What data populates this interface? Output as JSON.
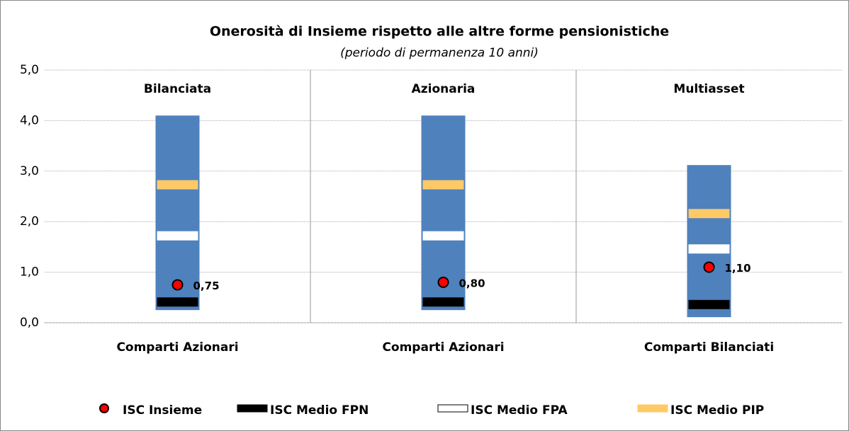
{
  "chart_data": {
    "type": "range-marker",
    "title": "Onerosità di Insieme rispetto alle altre forme pensionistiche",
    "subtitle": "(periodo di permanenza 10 anni)",
    "groups": [
      "Bilanciata",
      "Azionaria",
      "Multiasset"
    ],
    "categories": [
      "Comparti Azionari",
      "Comparti Azionari",
      "Comparti Bilanciati"
    ],
    "range": {
      "color": "#4f81bd",
      "low": [
        0.25,
        0.25,
        0.11
      ],
      "high": [
        4.1,
        4.1,
        3.12
      ]
    },
    "series": [
      {
        "name": "ISC Insieme",
        "color": "#ff0000",
        "marker": "dot",
        "values": [
          0.75,
          0.8,
          1.1
        ],
        "value_labels": [
          "0,75",
          "0,80",
          "1,10"
        ]
      },
      {
        "name": "ISC Medio FPN",
        "color": "#000000",
        "marker": "dash",
        "values": [
          0.41,
          0.41,
          0.36
        ]
      },
      {
        "name": "ISC Medio FPA",
        "color": "#ffffff",
        "marker": "dash",
        "values": [
          1.72,
          1.72,
          1.46
        ]
      },
      {
        "name": "ISC Medio PIP",
        "color": "#ffc966",
        "marker": "dash",
        "values": [
          2.73,
          2.73,
          2.16
        ]
      }
    ],
    "ylim": [
      0,
      5
    ],
    "yticks": [
      {
        "value": 0,
        "label": "0,0"
      },
      {
        "value": 1,
        "label": "1,0"
      },
      {
        "value": 2,
        "label": "2,0"
      },
      {
        "value": 3,
        "label": "3,0"
      },
      {
        "value": 4,
        "label": "4,0"
      },
      {
        "value": 5,
        "label": "5,0"
      }
    ],
    "grid": true
  }
}
